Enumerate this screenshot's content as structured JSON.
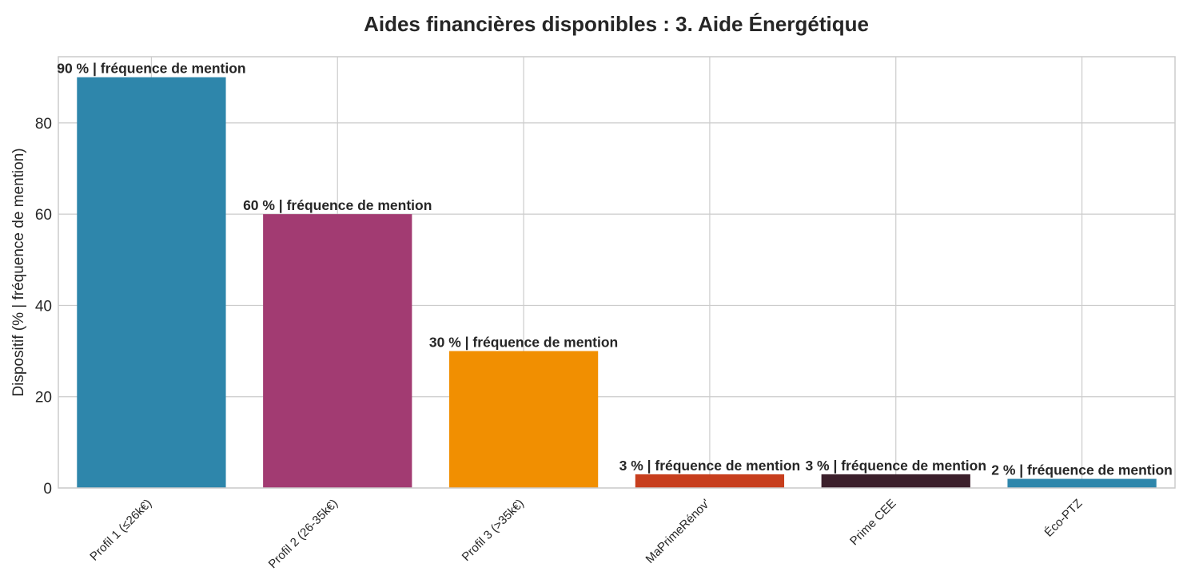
{
  "chart_data": {
    "type": "bar",
    "title": "Aides financières disponibles : 3. Aide Énergétique",
    "xlabel": "",
    "ylabel": "Dispositif (% | fréquence de mention)",
    "categories": [
      "Profil 1 (≤26k€)",
      "Profil 2 (26-35k€)",
      "Profil 3 (>35k€)",
      "MaPrimeRénov'",
      "Prime CEE",
      "Éco-PTZ"
    ],
    "values": [
      90,
      60,
      30,
      3,
      3,
      2
    ],
    "value_labels": [
      "90 % | fréquence de mention",
      "60 % | fréquence de mention",
      "30 % | fréquence de mention",
      "3 % | fréquence de mention",
      "3 % | fréquence de mention",
      "2 % | fréquence de mention"
    ],
    "colors": [
      "#2e86ab",
      "#a23b72",
      "#f18f01",
      "#c73e1d",
      "#3b1f2b",
      "#2e86ab"
    ],
    "ylim": [
      0,
      94.5
    ],
    "yticks": [
      0,
      20,
      40,
      60,
      80
    ],
    "grid": true,
    "legend": "none"
  }
}
